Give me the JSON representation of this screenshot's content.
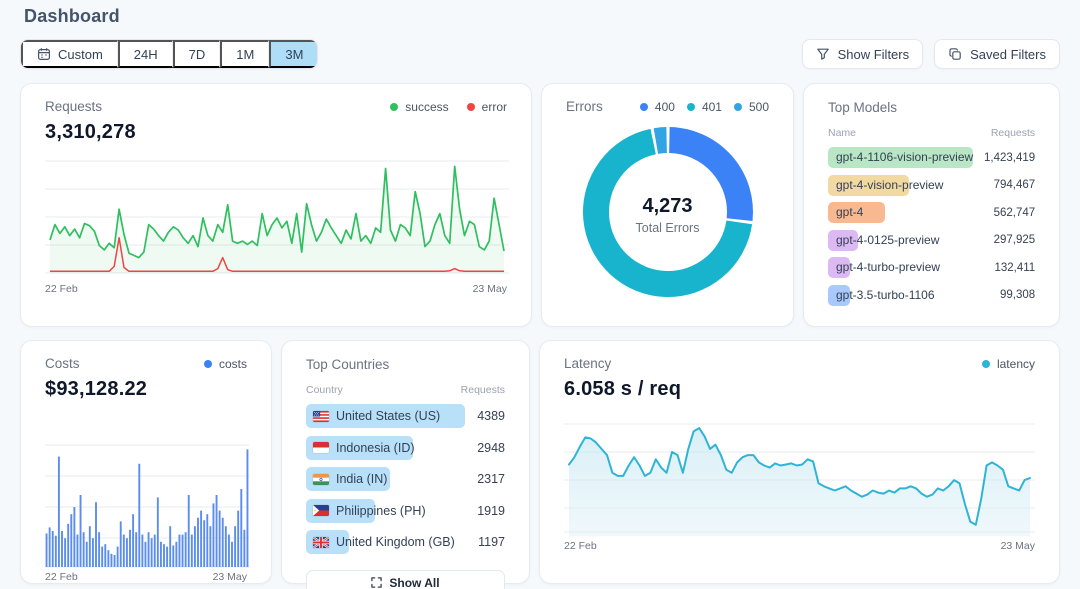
{
  "page": {
    "title": "Dashboard"
  },
  "toolbar": {
    "time_ranges": [
      {
        "label": "Custom",
        "icon": "calendar-icon",
        "selected": false
      },
      {
        "label": "24H",
        "selected": false
      },
      {
        "label": "7D",
        "selected": false
      },
      {
        "label": "1M",
        "selected": false
      },
      {
        "label": "3M",
        "selected": true
      }
    ],
    "show_filters": "Show Filters",
    "saved_filters": "Saved Filters"
  },
  "cards": {
    "requests": {
      "title": "Requests",
      "value": "3,310,278",
      "legend": [
        {
          "label": "success",
          "color": "#2fbf5f"
        },
        {
          "label": "error",
          "color": "#ef4444"
        }
      ],
      "x_start": "22 Feb",
      "x_end": "23 May"
    },
    "errors": {
      "title": "Errors",
      "total": "4,273",
      "total_label": "Total Errors",
      "legend": [
        {
          "label": "400",
          "color": "#3b82f6"
        },
        {
          "label": "401",
          "color": "#18b4cd"
        },
        {
          "label": "500",
          "color": "#33a4e3"
        }
      ]
    },
    "models": {
      "title": "Top Models",
      "col_name": "Name",
      "col_requests": "Requests"
    },
    "costs": {
      "title": "Costs",
      "value": "$93,128.22",
      "legend": [
        {
          "label": "costs",
          "color": "#3b82f6"
        }
      ],
      "x_start": "22 Feb",
      "x_end": "23 May"
    },
    "countries": {
      "title": "Top Countries",
      "col_name": "Country",
      "col_requests": "Requests",
      "show_all": "Show All"
    },
    "latency": {
      "title": "Latency",
      "value": "6.058 s / req",
      "legend": [
        {
          "label": "latency",
          "color": "#2eb4d6"
        }
      ],
      "x_start": "22 Feb",
      "x_end": "23 May"
    }
  },
  "chart_data": [
    {
      "id": "requests",
      "type": "line",
      "title": "Requests",
      "total": "3,310,278",
      "x_range": [
        "22 Feb",
        "23 May"
      ],
      "ylim": [
        0,
        100
      ],
      "grid": true,
      "legend_position": "top-right",
      "series": [
        {
          "name": "success",
          "color": "#2fbf5f",
          "values": [
            30,
            44,
            36,
            42,
            34,
            40,
            32,
            45,
            43,
            38,
            25,
            21,
            27,
            23,
            58,
            35,
            18,
            16,
            14,
            19,
            44,
            40,
            34,
            29,
            37,
            42,
            39,
            32,
            27,
            34,
            24,
            50,
            34,
            29,
            44,
            37,
            62,
            29,
            27,
            29,
            26,
            29,
            25,
            54,
            34,
            44,
            50,
            41,
            47,
            27,
            54,
            19,
            63,
            44,
            29,
            37,
            49,
            41,
            34,
            27,
            39,
            31,
            54,
            29,
            34,
            27,
            41,
            37,
            95,
            39,
            29,
            44,
            41,
            34,
            74,
            54,
            24,
            29,
            44,
            54,
            34,
            27,
            97,
            58,
            34,
            47,
            44,
            24,
            21,
            29,
            68,
            44,
            20
          ]
        },
        {
          "name": "error",
          "color": "#ef4444",
          "values": [
            1.5,
            1.5,
            1.5,
            1.5,
            1.5,
            1.5,
            1.5,
            1.5,
            1.5,
            1.5,
            1.5,
            1.5,
            1.5,
            6,
            32,
            5,
            1.5,
            1.5,
            1.5,
            1.5,
            1.5,
            1.5,
            1.5,
            1.5,
            1.5,
            1.5,
            1.5,
            1.5,
            1.5,
            1.5,
            1.5,
            1.5,
            1.5,
            1.5,
            4,
            14,
            3,
            1.5,
            1.5,
            1.5,
            1.5,
            1.5,
            1.5,
            1.5,
            1.5,
            1.5,
            1.5,
            1.5,
            1.5,
            1.5,
            1.5,
            1.5,
            1.5,
            1.5,
            1.5,
            1.5,
            1.5,
            1.5,
            1.5,
            1.5,
            1.5,
            1.5,
            1.5,
            1.5,
            1.5,
            1.5,
            1.5,
            1.5,
            1.5,
            1.5,
            1.5,
            1.5,
            1.5,
            1.5,
            1.5,
            1.5,
            1.5,
            1.5,
            1.5,
            1.5,
            1.5,
            2,
            4,
            2,
            1.5,
            1.5,
            1.5,
            1.5,
            1.5,
            1.5,
            1.5,
            1.5,
            1.5
          ]
        }
      ]
    },
    {
      "id": "errors",
      "type": "pie",
      "title": "Errors",
      "center_value": "4,273",
      "center_label": "Total Errors",
      "slices": [
        {
          "label": "400",
          "pct": 27,
          "color": "#3b82f6"
        },
        {
          "label": "401",
          "pct": 70,
          "color": "#18b4cd"
        },
        {
          "label": "500",
          "pct": 3,
          "color": "#33a4e3"
        }
      ]
    },
    {
      "id": "top_models",
      "type": "table",
      "title": "Top Models",
      "columns": [
        "Name",
        "Requests"
      ],
      "rows": [
        {
          "name": "gpt-4-1106-vision-preview",
          "requests": "1,423,419",
          "value": 1423419,
          "color": "#b9e6c4"
        },
        {
          "name": "gpt-4-vision-preview",
          "requests": "794,467",
          "value": 794467,
          "color": "#f2d9a1"
        },
        {
          "name": "gpt-4",
          "requests": "562,747",
          "value": 562747,
          "color": "#f9b990"
        },
        {
          "name": "gpt-4-0125-preview",
          "requests": "297,925",
          "value": 297925,
          "color": "#ddb9f3"
        },
        {
          "name": "gpt-4-turbo-preview",
          "requests": "132,411",
          "value": 132411,
          "color": "#ddb9f3"
        },
        {
          "name": "gpt-3.5-turbo-1106",
          "requests": "99,308",
          "value": 99308,
          "color": "#a9c8fb"
        }
      ]
    },
    {
      "id": "costs",
      "type": "bar",
      "title": "Costs",
      "total": "$93,128.22",
      "color": "#5b8def",
      "x_range": [
        "22 Feb",
        "23 May"
      ],
      "ylim": [
        0,
        100
      ],
      "grid": true,
      "values": [
        28,
        33,
        30,
        26,
        92,
        30,
        24,
        36,
        44,
        50,
        27,
        60,
        29,
        21,
        34,
        24,
        54,
        29,
        17,
        19,
        14,
        11,
        10,
        17,
        38,
        27,
        24,
        31,
        44,
        29,
        86,
        27,
        21,
        29,
        24,
        27,
        58,
        21,
        19,
        17,
        34,
        18,
        21,
        27,
        27,
        29,
        60,
        27,
        34,
        41,
        47,
        39,
        44,
        34,
        53,
        60,
        47,
        41,
        34,
        27,
        21,
        34,
        47,
        65,
        31,
        98
      ]
    },
    {
      "id": "top_countries",
      "type": "table",
      "title": "Top Countries",
      "columns": [
        "Country",
        "Requests"
      ],
      "rows": [
        {
          "name": "United States (US)",
          "flag": "us-flag-icon",
          "code": "us",
          "requests": "4389",
          "value": 4389
        },
        {
          "name": "Indonesia (ID)",
          "flag": "id-flag-icon",
          "code": "id",
          "requests": "2948",
          "value": 2948
        },
        {
          "name": "India (IN)",
          "flag": "in-flag-icon",
          "code": "in",
          "requests": "2317",
          "value": 2317
        },
        {
          "name": "Philippines (PH)",
          "flag": "ph-flag-icon",
          "code": "ph",
          "requests": "1919",
          "value": 1919
        },
        {
          "name": "United Kingdom (GB)",
          "flag": "gb-flag-icon",
          "code": "gb",
          "requests": "1197",
          "value": 1197
        }
      ]
    },
    {
      "id": "latency",
      "type": "area",
      "title": "Latency",
      "total": "6.058 s / req",
      "color": "#2eb4d6",
      "x_range": [
        "22 Feb",
        "23 May"
      ],
      "ylim": [
        0,
        100
      ],
      "grid": true,
      "values": [
        63,
        70,
        80,
        89,
        88,
        84,
        78,
        72,
        55,
        52,
        52,
        62,
        70,
        62,
        52,
        55,
        68,
        60,
        55,
        75,
        72,
        55,
        78,
        95,
        98,
        90,
        78,
        82,
        72,
        58,
        55,
        65,
        70,
        72,
        72,
        65,
        62,
        60,
        64,
        62,
        63,
        64,
        62,
        63,
        68,
        66,
        45,
        42,
        40,
        38,
        40,
        42,
        38,
        35,
        32,
        34,
        38,
        36,
        35,
        38,
        36,
        40,
        40,
        42,
        40,
        35,
        32,
        34,
        40,
        38,
        42,
        48,
        45,
        25,
        8,
        5,
        30,
        62,
        65,
        62,
        58,
        42,
        40,
        38,
        48,
        50
      ]
    }
  ]
}
